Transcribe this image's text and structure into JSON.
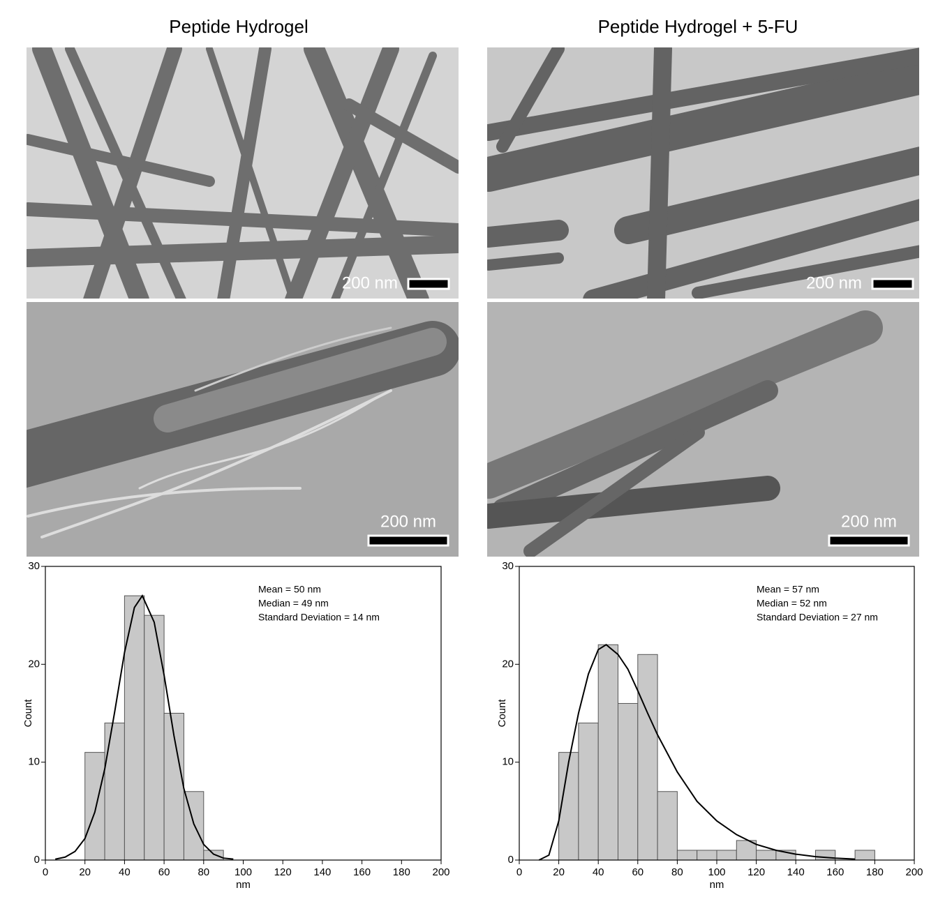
{
  "panels": [
    {
      "title": "Peptide Hydrogel",
      "scale_labels": [
        "200 nm",
        "200 nm"
      ]
    },
    {
      "title": "Peptide Hydrogel + 5-FU",
      "scale_labels": [
        "200 nm",
        "200 nm"
      ]
    }
  ],
  "chart_data": [
    {
      "type": "histogram",
      "bins": [
        20,
        30,
        40,
        50,
        60,
        70,
        80,
        90
      ],
      "values": [
        11,
        14,
        27,
        25,
        15,
        7,
        1
      ],
      "color": "#c8c8c8",
      "fit_x": [
        5,
        10,
        15,
        20,
        25,
        30,
        35,
        40,
        45,
        49,
        55,
        60,
        65,
        70,
        75,
        80,
        85,
        90,
        95
      ],
      "fit_y": [
        0.09,
        0.3,
        0.88,
        2.2,
        4.9,
        9.3,
        15.1,
        21.2,
        25.8,
        27,
        24.3,
        18.9,
        12.7,
        7.3,
        3.7,
        1.6,
        0.6,
        0.2,
        0.1
      ],
      "annotations": [
        "Mean = 50 nm",
        "Median = 49 nm",
        "Standard Deviation = 14 nm"
      ],
      "x_label": "nm",
      "y_label": "Count",
      "xlim": [
        0,
        200
      ],
      "ylim": [
        0,
        30
      ],
      "xticks": [
        0,
        20,
        40,
        60,
        80,
        100,
        120,
        140,
        160,
        180,
        200
      ],
      "yticks": [
        0,
        10,
        20,
        30
      ]
    },
    {
      "type": "histogram",
      "bins": [
        20,
        30,
        40,
        50,
        60,
        70,
        80,
        90,
        100,
        110,
        120,
        130,
        140,
        150,
        160,
        170,
        180
      ],
      "values": [
        11,
        14,
        22,
        16,
        21,
        7,
        1,
        1,
        1,
        2,
        1,
        1,
        0,
        1,
        0,
        1
      ],
      "color": "#c8c8c8",
      "fit_x": [
        10,
        15,
        20,
        25,
        30,
        35,
        40,
        44,
        50,
        55,
        60,
        65,
        70,
        80,
        90,
        100,
        110,
        120,
        130,
        140,
        150,
        160,
        170
      ],
      "fit_y": [
        0,
        0.5,
        4,
        10,
        15,
        19,
        21.5,
        22,
        21,
        19.5,
        17.3,
        15,
        12.8,
        9,
        6,
        4,
        2.6,
        1.6,
        1,
        0.6,
        0.35,
        0.2,
        0.1
      ],
      "annotations": [
        "Mean = 57 nm",
        "Median = 52 nm",
        "Standard Deviation = 27 nm"
      ],
      "x_label": "nm",
      "y_label": "Count",
      "xlim": [
        0,
        200
      ],
      "ylim": [
        0,
        30
      ],
      "xticks": [
        0,
        20,
        40,
        60,
        80,
        100,
        120,
        140,
        160,
        180,
        200
      ],
      "yticks": [
        0,
        10,
        20,
        30
      ]
    }
  ]
}
